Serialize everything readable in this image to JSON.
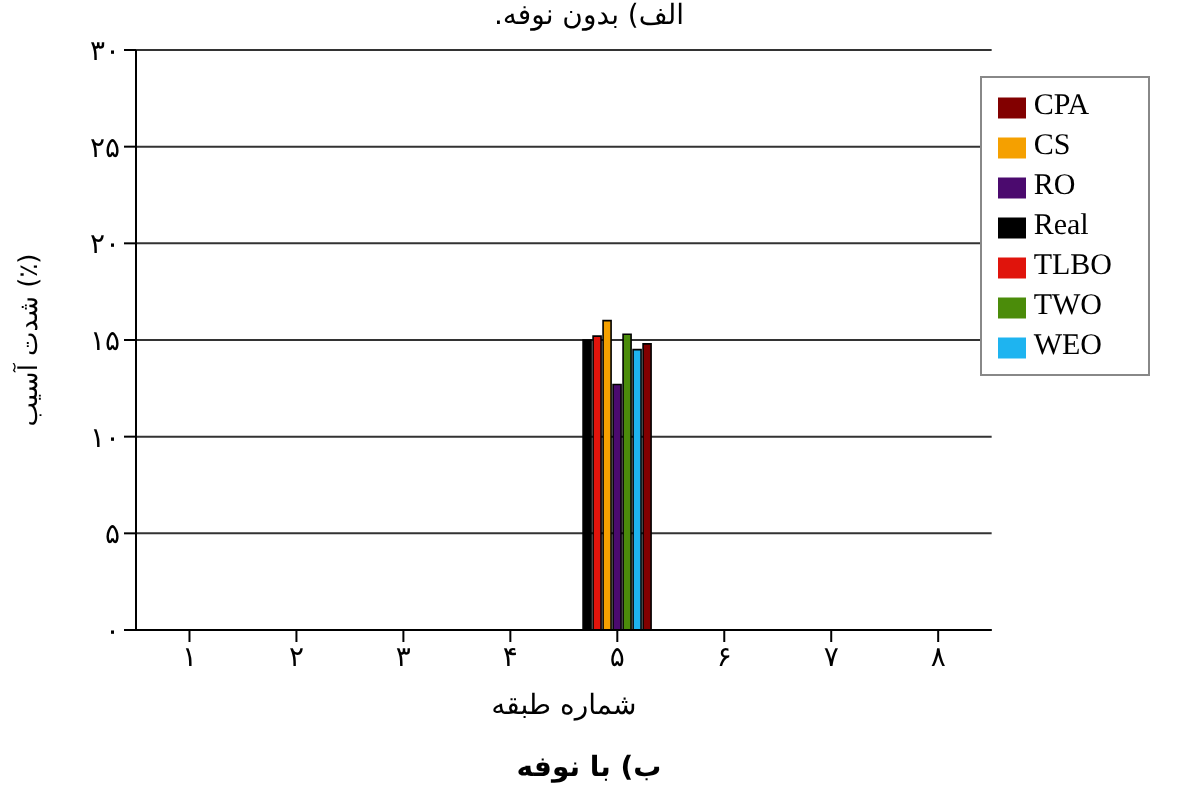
{
  "chart_data": {
    "type": "bar",
    "title": "الف) بدون نوفه.",
    "xlabel": "شماره طبقه",
    "ylabel": "شدت آسیب (٪)",
    "categories": [
      "۱",
      "۲",
      "۳",
      "۴",
      "۵",
      "۶",
      "۷",
      "۸"
    ],
    "series": [
      {
        "name": "Real",
        "color": "#000000",
        "values": [
          0,
          0,
          0,
          0,
          15,
          0,
          0,
          0
        ]
      },
      {
        "name": "TLBO",
        "color": "#e0140c",
        "values": [
          0,
          0,
          0,
          0,
          15.2,
          0,
          0,
          0
        ]
      },
      {
        "name": "CS",
        "color": "#f5a000",
        "values": [
          0,
          0,
          0,
          0,
          16,
          0,
          0,
          0
        ]
      },
      {
        "name": "RO",
        "color": "#4b0a6e",
        "values": [
          0,
          0,
          0,
          0,
          12.7,
          0,
          0,
          0
        ]
      },
      {
        "name": "TWO",
        "color": "#4b8c0a",
        "values": [
          0,
          0,
          0,
          0,
          15.3,
          0,
          0,
          0
        ]
      },
      {
        "name": "WEO",
        "color": "#1eb4f0",
        "values": [
          0,
          0,
          0,
          0,
          14.5,
          0,
          0,
          0
        ]
      },
      {
        "name": "CPA",
        "color": "#820000",
        "values": [
          0,
          0,
          0,
          0,
          14.8,
          0,
          0,
          0
        ]
      }
    ],
    "ylim": [
      0,
      30
    ],
    "yticks": [
      {
        "value": 0,
        "label": "۰"
      },
      {
        "value": 5,
        "label": "۵"
      },
      {
        "value": 10,
        "label": "۱۰"
      },
      {
        "value": 15,
        "label": "۱۵"
      },
      {
        "value": 20,
        "label": "۲۰"
      },
      {
        "value": 25,
        "label": "۲۵"
      },
      {
        "value": 30,
        "label": "۳۰"
      }
    ],
    "grid": "y",
    "legend": "top right",
    "annotations": [
      "ب) با نوفه"
    ]
  }
}
